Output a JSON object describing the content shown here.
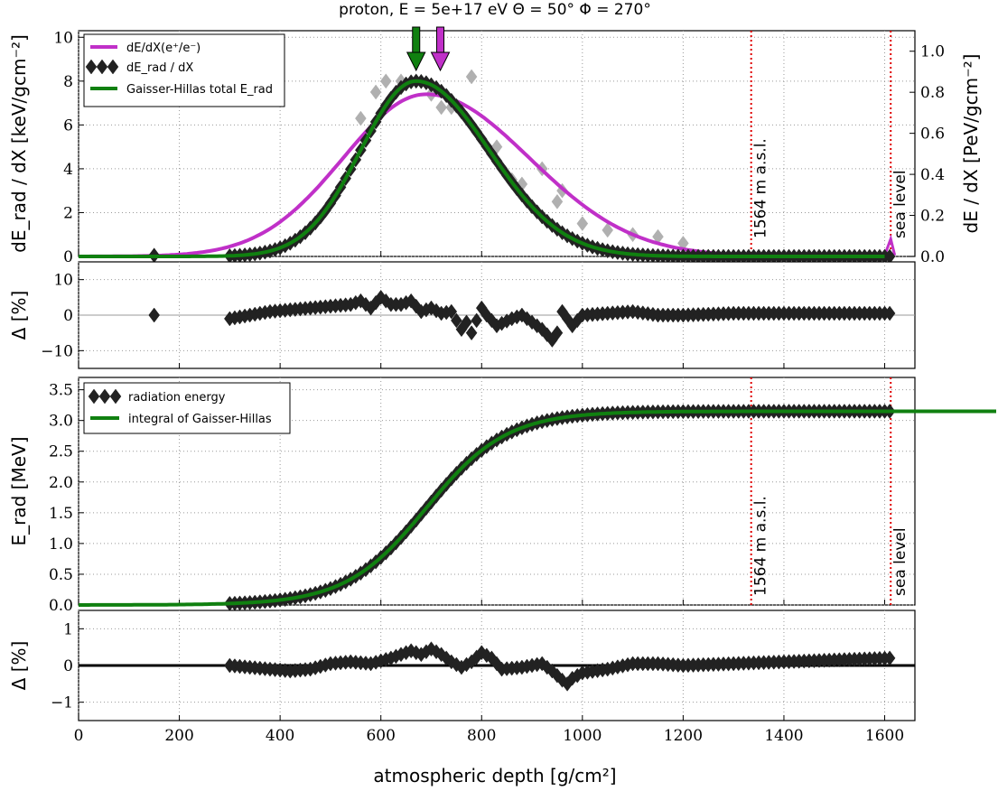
{
  "title": "proton, E = 5e+17 eV Θ = 50° Φ = 270°",
  "xlabel": "atmospheric depth [g/cm²]",
  "x_ticks": [
    "0",
    "200",
    "400",
    "600",
    "800",
    "1000",
    "1200",
    "1400",
    "1600"
  ],
  "colors": {
    "magenta": "#c030c8",
    "green": "#108010",
    "diamond": "#222222",
    "diamond_light": "#b0b0b0",
    "red_line": "#e00000"
  },
  "markers": {
    "line1": {
      "x": 1335,
      "label": "1564 m a.s.l."
    },
    "line2": {
      "x": 1612,
      "label": "sea level"
    }
  },
  "arrows": [
    {
      "name": "green-arrow",
      "x": 670,
      "color": "green"
    },
    {
      "name": "magenta-arrow",
      "x": 718,
      "color": "magenta"
    }
  ],
  "chart_data": [
    {
      "type": "line",
      "panel": "dEdX",
      "ylabel": "dE_rad / dX [keV/gcm⁻²]",
      "ylabel2": "dE / dX [PeV/gcm⁻²]",
      "xlim": [
        0,
        1660
      ],
      "ylim": [
        0,
        10.3
      ],
      "y2lim": [
        0,
        1.1
      ],
      "y_ticks": [
        "0",
        "2",
        "4",
        "6",
        "8",
        "10"
      ],
      "y2_ticks": [
        "0.0",
        "0.2",
        "0.4",
        "0.6",
        "0.8",
        "1.0"
      ],
      "grid": true,
      "legend": "top-left",
      "legend_entries": [
        "dE/dX(e⁺/e⁻)",
        "dE_rad / dX",
        "Gaisser-Hillas total E_rad"
      ],
      "series": [
        {
          "name": "dE/dX(e⁺/e⁻)",
          "kind": "gaussian",
          "peak_x": 690,
          "peak_y": 7.4,
          "sigma_left": 165,
          "sigma_right": 205
        },
        {
          "name": "Gaisser-Hillas total E_rad",
          "kind": "gaussian",
          "peak_x": 670,
          "peak_y": 8.0,
          "sigma_left": 110,
          "sigma_right": 145
        },
        {
          "name": "dE_rad / dX",
          "kind": "points",
          "x_start": 300,
          "x_end": 1610,
          "x_step": 10,
          "follows": "Gaisser-Hillas total E_rad",
          "outliers": [
            [
              150,
              0.05
            ],
            [
              560,
              6.3
            ],
            [
              590,
              7.5
            ],
            [
              610,
              8.0
            ],
            [
              640,
              8.0
            ],
            [
              700,
              7.4
            ],
            [
              720,
              6.8
            ],
            [
              740,
              6.8
            ],
            [
              780,
              8.2
            ],
            [
              830,
              5.0
            ],
            [
              860,
              3.5
            ],
            [
              880,
              3.3
            ],
            [
              920,
              4.0
            ],
            [
              950,
              2.5
            ],
            [
              960,
              3.0
            ],
            [
              1000,
              1.5
            ],
            [
              1050,
              1.2
            ],
            [
              1100,
              1.0
            ],
            [
              1150,
              0.9
            ],
            [
              1200,
              0.6
            ]
          ]
        }
      ]
    },
    {
      "type": "scatter",
      "panel": "residual-1",
      "ylabel": "Δ [%]",
      "xlim": [
        0,
        1660
      ],
      "ylim": [
        -15,
        15
      ],
      "y_ticks": [
        "−10",
        "0",
        "10"
      ],
      "grid": true,
      "series": [
        {
          "name": "",
          "x": [
            150,
            300,
            340,
            380,
            420,
            460,
            500,
            540,
            560,
            580,
            600,
            620,
            640,
            660,
            680,
            700,
            720,
            740,
            760,
            770,
            780,
            800,
            810,
            830,
            860,
            880,
            900,
            920,
            940,
            950,
            960,
            980,
            1000,
            1050,
            1100,
            1150,
            1200,
            1300,
            1400,
            1500,
            1610
          ],
          "y": [
            0,
            -1,
            0,
            1,
            1.5,
            2,
            2.5,
            3,
            4,
            2,
            5,
            3,
            3,
            4,
            1,
            2,
            0.5,
            1,
            -4,
            -2,
            -5,
            2,
            0,
            -3,
            -1,
            0,
            -2,
            -4,
            -7,
            -5,
            1,
            -3,
            0,
            0.5,
            1,
            0,
            0,
            0.5,
            0.5,
            0.5,
            0.5
          ]
        }
      ]
    },
    {
      "type": "line",
      "panel": "Erad",
      "ylabel": "E_rad [MeV]",
      "xlim": [
        0,
        1660
      ],
      "ylim": [
        0,
        3.7
      ],
      "y_ticks": [
        "0.0",
        "0.5",
        "1.0",
        "1.5",
        "2.0",
        "2.5",
        "3.0",
        "3.5"
      ],
      "grid": true,
      "legend": "top-left",
      "legend_entries": [
        "radiation energy",
        "integral of Gaisser-Hillas"
      ],
      "series": [
        {
          "name": "integral of Gaisser-Hillas",
          "kind": "sigmoid",
          "center": 690,
          "width": 80,
          "max": 3.15
        },
        {
          "name": "radiation energy",
          "kind": "points",
          "x_start": 300,
          "x_end": 1610,
          "x_step": 10,
          "follows": "integral of Gaisser-Hillas"
        }
      ]
    },
    {
      "type": "scatter",
      "panel": "residual-2",
      "ylabel": "Δ [%]",
      "xlim": [
        0,
        1660
      ],
      "ylim": [
        -1.5,
        1.5
      ],
      "y_ticks": [
        "−1",
        "0",
        "1"
      ],
      "grid": true,
      "series": [
        {
          "name": "",
          "x": [
            300,
            340,
            380,
            420,
            460,
            500,
            540,
            580,
            620,
            660,
            680,
            700,
            720,
            740,
            760,
            780,
            800,
            820,
            840,
            880,
            920,
            940,
            960,
            970,
            980,
            1000,
            1050,
            1100,
            1150,
            1200,
            1300,
            1400,
            1500,
            1610
          ],
          "y": [
            0,
            -0.05,
            -0.1,
            -0.15,
            -0.1,
            0.05,
            0.1,
            0.05,
            0.2,
            0.4,
            0.3,
            0.45,
            0.3,
            0.1,
            -0.05,
            0.1,
            0.35,
            0.2,
            -0.1,
            -0.05,
            0.05,
            -0.15,
            -0.4,
            -0.5,
            -0.35,
            -0.2,
            -0.1,
            0.05,
            0.05,
            0.0,
            0.05,
            0.1,
            0.15,
            0.2
          ]
        }
      ]
    }
  ]
}
